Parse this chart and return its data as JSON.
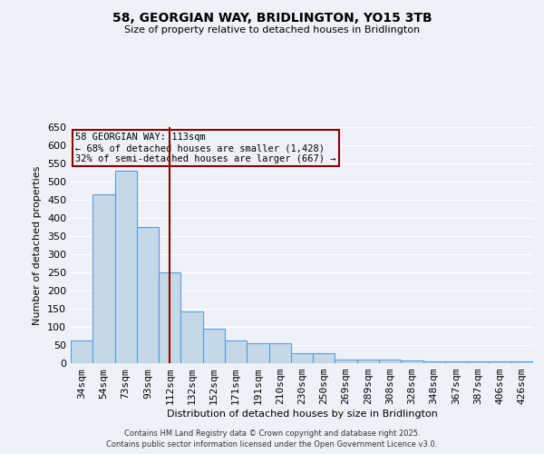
{
  "title": "58, GEORGIAN WAY, BRIDLINGTON, YO15 3TB",
  "subtitle": "Size of property relative to detached houses in Bridlington",
  "xlabel": "Distribution of detached houses by size in Bridlington",
  "ylabel": "Number of detached properties",
  "categories": [
    "34sqm",
    "54sqm",
    "73sqm",
    "93sqm",
    "112sqm",
    "132sqm",
    "152sqm",
    "171sqm",
    "191sqm",
    "210sqm",
    "230sqm",
    "250sqm",
    "269sqm",
    "289sqm",
    "308sqm",
    "328sqm",
    "348sqm",
    "367sqm",
    "387sqm",
    "406sqm",
    "426sqm"
  ],
  "values": [
    63,
    465,
    530,
    375,
    250,
    142,
    95,
    63,
    55,
    55,
    27,
    27,
    10,
    10,
    10,
    8,
    5,
    5,
    5,
    5,
    5
  ],
  "bar_color": "#c5d8e8",
  "bar_edge_color": "#5b9bd5",
  "marker_index": 4,
  "marker_color": "#8b0000",
  "ylim": [
    0,
    650
  ],
  "yticks": [
    0,
    50,
    100,
    150,
    200,
    250,
    300,
    350,
    400,
    450,
    500,
    550,
    600,
    650
  ],
  "annotation_line1": "58 GEORGIAN WAY: 113sqm",
  "annotation_line2": "← 68% of detached houses are smaller (1,428)",
  "annotation_line3": "32% of semi-detached houses are larger (667) →",
  "annotation_box_color": "#8b0000",
  "bg_color": "#eef2f8",
  "grid_color": "#ffffff",
  "footer_line1": "Contains HM Land Registry data © Crown copyright and database right 2025.",
  "footer_line2": "Contains public sector information licensed under the Open Government Licence v3.0."
}
